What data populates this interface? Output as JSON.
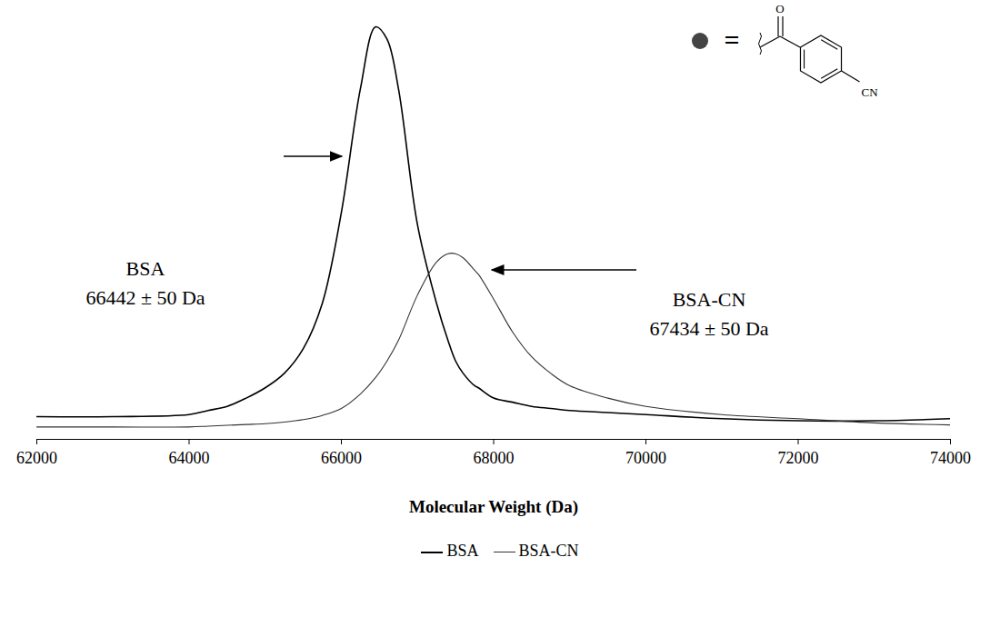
{
  "chart_data": {
    "type": "line",
    "x_label": "Molecular Weight (Da)",
    "x": [
      62000,
      63000,
      64000,
      64250,
      64500,
      64750,
      65000,
      65250,
      65500,
      65750,
      66000,
      66250,
      66450,
      66600,
      66750,
      67000,
      67250,
      67400,
      67500,
      67600,
      67750,
      67800,
      68000,
      68250,
      68500,
      68750,
      69000,
      69500,
      70000,
      71000,
      72000,
      73000,
      74000
    ],
    "series": [
      {
        "name": "BSA",
        "color": "#000000",
        "line_style": "solid",
        "values": [
          5.5,
          5.5,
          6,
          7,
          8,
          10,
          12.5,
          16,
          22,
          33,
          55,
          85,
          100,
          97,
          85,
          52,
          33,
          24,
          19,
          16,
          13,
          12.5,
          10,
          9,
          8,
          7.5,
          7,
          6.5,
          6,
          5,
          4.5,
          4.5,
          5
        ]
      },
      {
        "name": "BSA-CN",
        "color": "#333333",
        "line_style": "solid",
        "values": [
          3,
          3,
          3,
          3.2,
          3.4,
          3.6,
          3.8,
          4.2,
          4.8,
          5.8,
          7.5,
          11,
          15,
          19,
          24,
          35,
          43,
          45,
          45,
          44,
          41,
          40,
          34,
          26,
          20,
          16,
          13,
          10,
          8,
          6,
          5,
          4,
          3.5
        ]
      }
    ],
    "xlim": [
      62000,
      74000
    ],
    "xticks": [
      62000,
      64000,
      66000,
      68000,
      70000,
      72000,
      74000
    ],
    "ylim": [
      0,
      102
    ],
    "yticks": [],
    "tick_labels": "x",
    "grid": false,
    "legend": "bottom",
    "annotations": [
      "BSA",
      "66442 ± 50 Da",
      "BSA-CN",
      "67434 ± 50 Da"
    ],
    "structure_labels": [
      "=",
      "O",
      "CN"
    ]
  }
}
